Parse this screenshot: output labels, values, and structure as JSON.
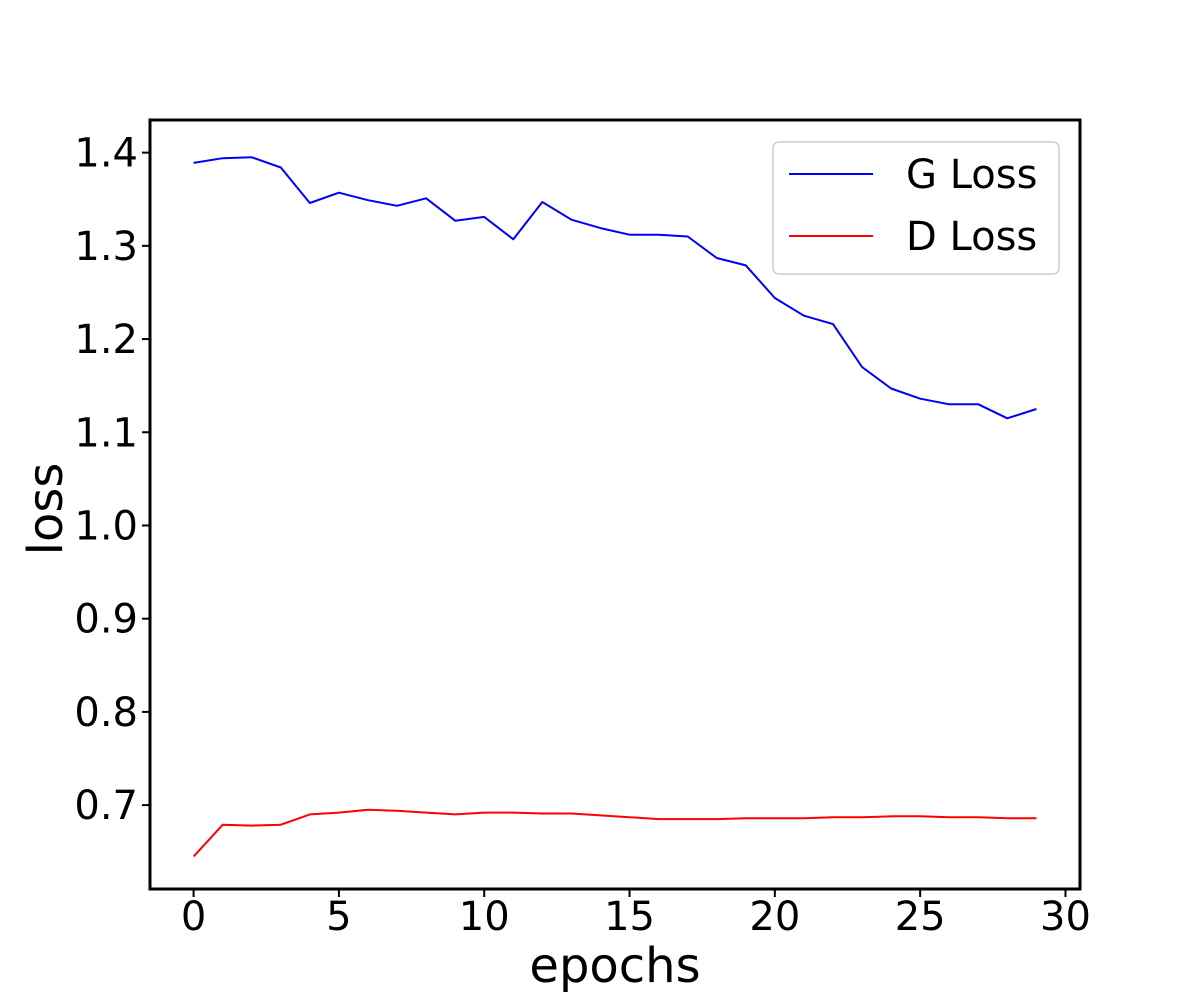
{
  "chart_data": {
    "type": "line",
    "xlabel": "epochs",
    "ylabel": "loss",
    "xlim": [
      -1.5,
      30.5
    ],
    "ylim": [
      0.61,
      1.435
    ],
    "xticks": [
      0,
      5,
      10,
      15,
      20,
      25,
      30
    ],
    "xtick_labels": [
      "0",
      "5",
      "10",
      "15",
      "20",
      "25",
      "30"
    ],
    "yticks": [
      0.7,
      0.8,
      0.9,
      1.0,
      1.1,
      1.2,
      1.3,
      1.4
    ],
    "ytick_labels": [
      "0.7",
      "0.8",
      "0.9",
      "1.0",
      "1.1",
      "1.2",
      "1.3",
      "1.4"
    ],
    "grid": false,
    "legend_position": "top-right",
    "x": [
      0,
      1,
      2,
      3,
      4,
      5,
      6,
      7,
      8,
      9,
      10,
      11,
      12,
      13,
      14,
      15,
      16,
      17,
      18,
      19,
      20,
      21,
      22,
      23,
      24,
      25,
      26,
      27,
      28,
      29
    ],
    "series": [
      {
        "name": "G Loss",
        "color": "#0000ff",
        "values": [
          1.389,
          1.394,
          1.395,
          1.384,
          1.346,
          1.357,
          1.349,
          1.343,
          1.351,
          1.327,
          1.331,
          1.307,
          1.347,
          1.328,
          1.319,
          1.312,
          1.312,
          1.31,
          1.287,
          1.279,
          1.244,
          1.225,
          1.216,
          1.17,
          1.147,
          1.136,
          1.13,
          1.13,
          1.115,
          1.125
        ]
      },
      {
        "name": "D Loss",
        "color": "#ff0000",
        "values": [
          0.645,
          0.679,
          0.678,
          0.679,
          0.69,
          0.692,
          0.695,
          0.694,
          0.692,
          0.69,
          0.692,
          0.692,
          0.691,
          0.691,
          0.689,
          0.687,
          0.685,
          0.685,
          0.685,
          0.686,
          0.686,
          0.686,
          0.687,
          0.687,
          0.688,
          0.688,
          0.687,
          0.687,
          0.686,
          0.686
        ]
      }
    ]
  }
}
